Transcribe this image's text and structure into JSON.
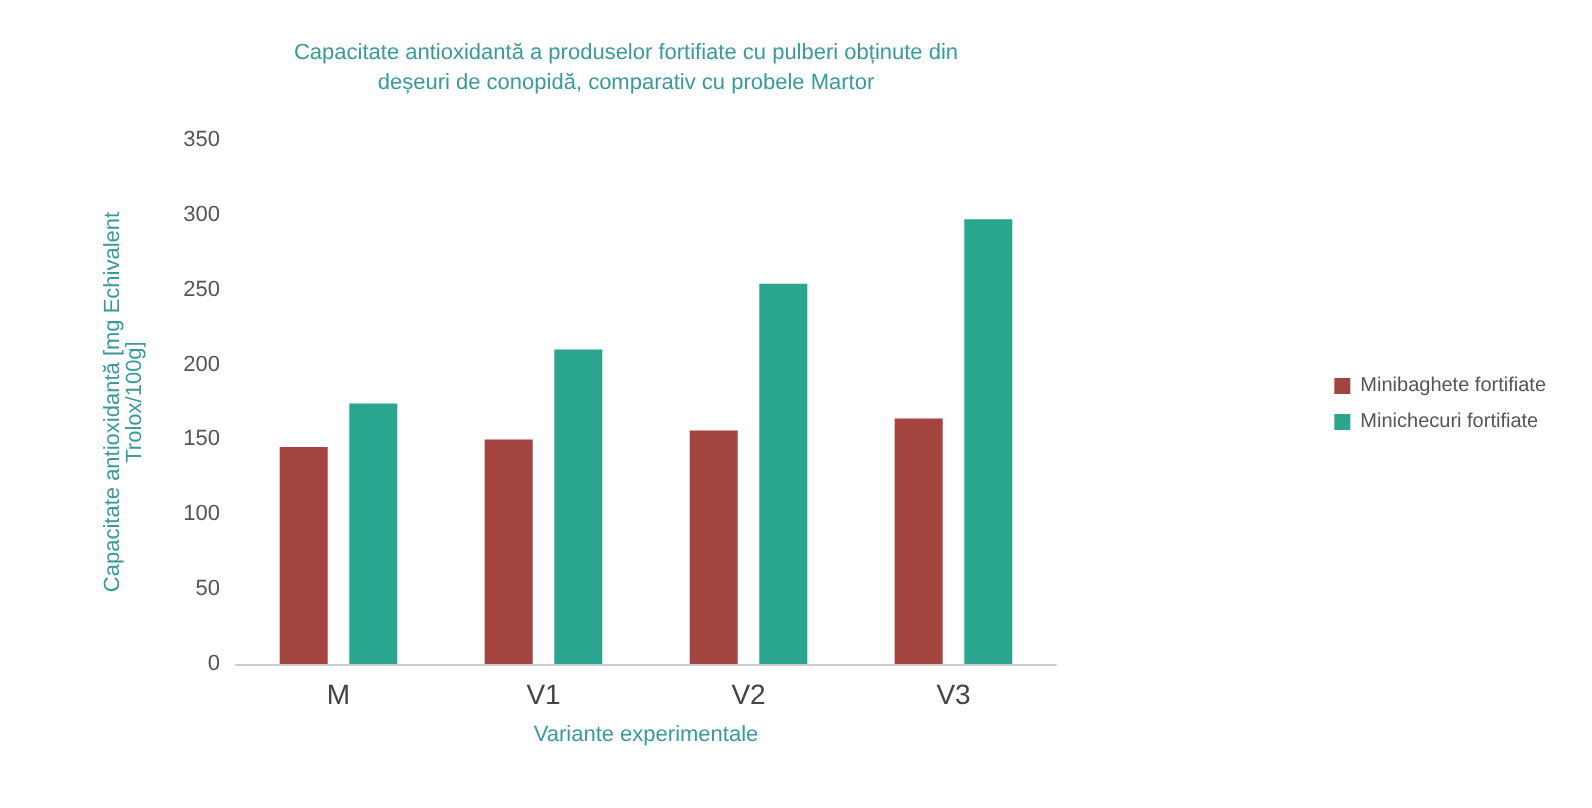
{
  "chart_data": {
    "type": "bar",
    "title": "Capacitate antioxidantă a produselor fortifiate cu pulberi obținute din\ndeșeuri de conopidă, comparativ cu probele Martor",
    "xlabel": "Variante experimentale",
    "ylabel": "Capacitate antioxidantă [mg Echivalent\nTrolox/100g]",
    "categories": [
      "M",
      "V1",
      "V2",
      "V3"
    ],
    "series": [
      {
        "name": "Minibaghete fortifiate",
        "color": "#a3443e",
        "values": [
          145,
          150,
          156,
          164
        ]
      },
      {
        "name": "Minichecuri fortifiate",
        "color": "#2aa58f",
        "values": [
          174,
          210,
          254,
          297
        ]
      }
    ],
    "ylim": [
      0,
      350
    ],
    "yticks": [
      0,
      50,
      100,
      150,
      200,
      250,
      300,
      350
    ],
    "grid": false,
    "legend": "right"
  }
}
